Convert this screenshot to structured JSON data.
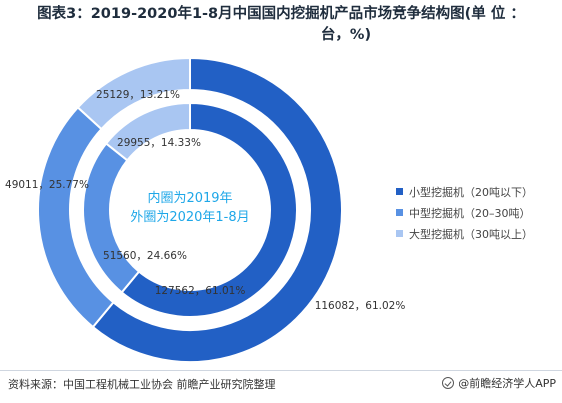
{
  "header": {
    "title_line1": "图表3：2019-2020年1-8月中国国内挖掘机产品市场竞争结构图(单 位 ：",
    "title_line2": "台，%)"
  },
  "center_note": {
    "line1": "内圈为2019年",
    "line2": "外圈为2020年1-8月"
  },
  "footer": {
    "source": "资料来源：中国工程机械工业协会 前瞻产业研究院整理",
    "brand": "@前瞻经济学人APP"
  },
  "colors": {
    "small": "#2260c5",
    "medium": "#5891e3",
    "large": "#a9c6f2"
  },
  "chart_data": {
    "type": "pie",
    "categories": [
      "小型挖掘机（20吨以下）",
      "中型挖掘机（20–30吨）",
      "大型挖掘机（30吨以上）"
    ],
    "series": [
      {
        "values": [
          127562,
          51560,
          29955
        ],
        "percents": [
          "61.01%",
          "24.66%",
          "14.33%"
        ]
      },
      {
        "values": [
          116082,
          49011,
          25129
        ],
        "percents": [
          "61.02%",
          "25.77%",
          "13.21%"
        ]
      }
    ],
    "legend_position": "right"
  }
}
